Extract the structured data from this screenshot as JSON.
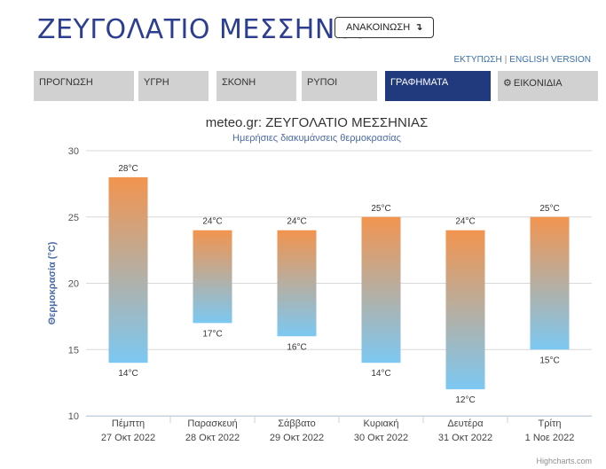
{
  "header": {
    "title": "ΖΕΥΓΟΛΑΤΙΟ ΜΕΣΣΗΝΙΑΣ",
    "announce_label": "ΑΝΑΚΟΙΝΩΣΗ",
    "announce_icon": "turn-down-arrow-icon",
    "print_label": "ΕΚΤΥΠΩΣΗ",
    "separator": "|",
    "english_label": "ENGLISH VERSION"
  },
  "tabs": [
    {
      "label": "ΠΡΟΓΝΩΣΗ",
      "active": false
    },
    {
      "label": "ΥΓΡΗ",
      "active": false
    },
    {
      "label": "ΣΚΟΝΗ",
      "active": false
    },
    {
      "label": "ΡΥΠΟΙ",
      "active": false
    },
    {
      "label": "ΓΡΑΦΗΜΑΤΑ",
      "active": true
    },
    {
      "label": "ΕΙΚΟΝΙΔΙΑ",
      "active": false,
      "icon": "gear-icon"
    }
  ],
  "colors": {
    "active_tab": "#213a7e",
    "tab": "#d1d1d1",
    "title": "#2c3e8f",
    "bar_top": "#f2944f",
    "bar_bottom": "#7cc8f2"
  },
  "chart_data": {
    "type": "bar",
    "subtype": "columnrange",
    "title": "meteo.gr: ΖΕΥΓΟΛΑΤΙΟ ΜΕΣΣΗΝΙΑΣ",
    "subtitle": "Ημερήσιες διακυμάνσεις θερμοκρασίας",
    "ylabel": "Θερμοκρασία (°C)",
    "xlabel": "",
    "ylim": [
      10,
      30
    ],
    "yticks": [
      10,
      15,
      20,
      25,
      30
    ],
    "grid": true,
    "legend": "none",
    "unit": "°C",
    "categories": [
      {
        "day": "Πέμπτη",
        "date": "27 Οκτ 2022"
      },
      {
        "day": "Παρασκευή",
        "date": "28 Οκτ 2022"
      },
      {
        "day": "Σάββατο",
        "date": "29 Οκτ 2022"
      },
      {
        "day": "Κυριακή",
        "date": "30 Οκτ 2022"
      },
      {
        "day": "Δευτέρα",
        "date": "31 Οκτ 2022"
      },
      {
        "day": "Τρίτη",
        "date": "1 Νοε 2022"
      }
    ],
    "series": [
      {
        "low": [
          14,
          17,
          16,
          14,
          12,
          15
        ],
        "high": [
          28,
          24,
          24,
          25,
          24,
          25
        ]
      }
    ],
    "credits": "Highcharts.com"
  }
}
